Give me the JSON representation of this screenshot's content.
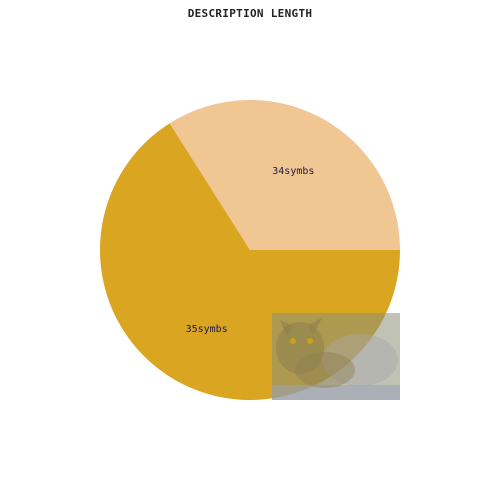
{
  "chart_data": {
    "type": "pie",
    "title": "DESCRIPTION LENGTH",
    "slices": [
      {
        "label": "34symbs",
        "value": 34,
        "color": "#f0c693"
      },
      {
        "label": "35symbs",
        "value": 66,
        "color": "#daa520"
      }
    ],
    "start_angle_deg": 0,
    "direction": "counterclockwise"
  },
  "overlay": {
    "icon": "cat-photo-icon"
  }
}
